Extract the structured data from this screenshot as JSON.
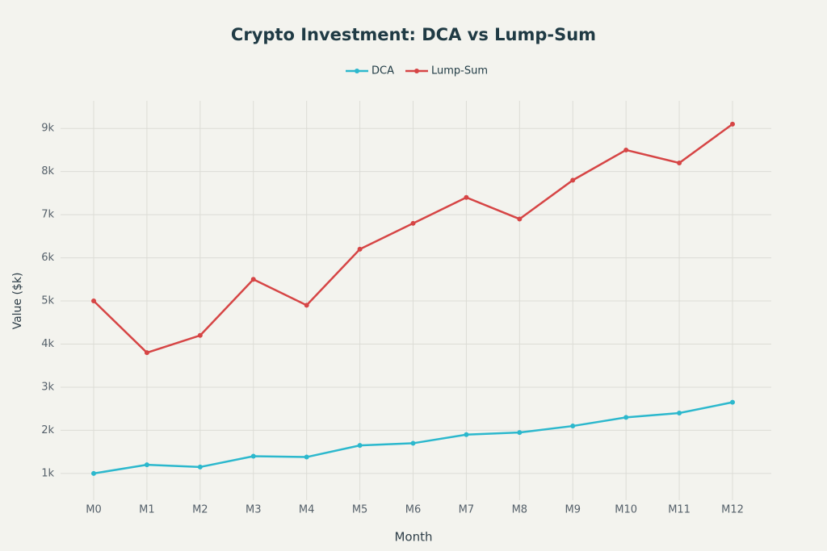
{
  "chart_data": {
    "type": "line",
    "title": "Crypto Investment: DCA vs Lump-Sum",
    "x_label": "Month",
    "y_label": "Value ($k)",
    "categories": [
      "M0",
      "M1",
      "M2",
      "M3",
      "M4",
      "M5",
      "M6",
      "M7",
      "M8",
      "M9",
      "M10",
      "M11",
      "M12"
    ],
    "series": [
      {
        "name": "DCA",
        "color": "#2cb8cd",
        "values": [
          1000,
          1200,
          1150,
          1400,
          1380,
          1650,
          1700,
          1900,
          1950,
          2100,
          2300,
          2400,
          2650
        ]
      },
      {
        "name": "Lump-Sum",
        "color": "#d64545",
        "values": [
          5000,
          3800,
          4200,
          5500,
          4900,
          6200,
          6800,
          7400,
          6900,
          7800,
          8500,
          8200,
          9100
        ]
      }
    ],
    "ylim": [
      380,
      9640
    ],
    "yticks": [
      {
        "value": 1000,
        "label": "1k"
      },
      {
        "value": 2000,
        "label": "2k"
      },
      {
        "value": 3000,
        "label": "3k"
      },
      {
        "value": 4000,
        "label": "4k"
      },
      {
        "value": 5000,
        "label": "5k"
      },
      {
        "value": 6000,
        "label": "6k"
      },
      {
        "value": 7000,
        "label": "7k"
      },
      {
        "value": 8000,
        "label": "8k"
      },
      {
        "value": 9000,
        "label": "9k"
      }
    ],
    "grid": true,
    "legend": "top"
  }
}
